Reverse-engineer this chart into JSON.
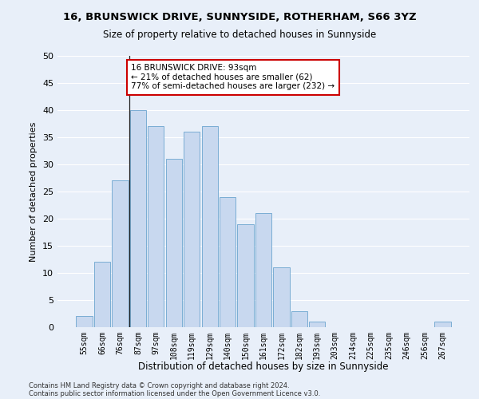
{
  "title1": "16, BRUNSWICK DRIVE, SUNNYSIDE, ROTHERHAM, S66 3YZ",
  "title2": "Size of property relative to detached houses in Sunnyside",
  "xlabel": "Distribution of detached houses by size in Sunnyside",
  "ylabel": "Number of detached properties",
  "categories": [
    "55sqm",
    "66sqm",
    "76sqm",
    "87sqm",
    "97sqm",
    "108sqm",
    "119sqm",
    "129sqm",
    "140sqm",
    "150sqm",
    "161sqm",
    "172sqm",
    "182sqm",
    "193sqm",
    "203sqm",
    "214sqm",
    "225sqm",
    "235sqm",
    "246sqm",
    "256sqm",
    "267sqm"
  ],
  "values": [
    2,
    12,
    27,
    40,
    37,
    31,
    36,
    37,
    24,
    19,
    21,
    11,
    3,
    1,
    0,
    0,
    0,
    0,
    0,
    0,
    1
  ],
  "bar_color": "#c8d8ef",
  "bar_edge_color": "#7aadd4",
  "background_color": "#e8eff9",
  "fig_background_color": "#e8eff9",
  "grid_color": "#ffffff",
  "annotation_text": "16 BRUNSWICK DRIVE: 93sqm\n← 21% of detached houses are smaller (62)\n77% of semi-detached houses are larger (232) →",
  "annotation_box_color": "#ffffff",
  "annotation_box_edge_color": "#cc0000",
  "ylim": [
    0,
    50
  ],
  "yticks": [
    0,
    5,
    10,
    15,
    20,
    25,
    30,
    35,
    40,
    45,
    50
  ],
  "footer1": "Contains HM Land Registry data © Crown copyright and database right 2024.",
  "footer2": "Contains public sector information licensed under the Open Government Licence v3.0."
}
